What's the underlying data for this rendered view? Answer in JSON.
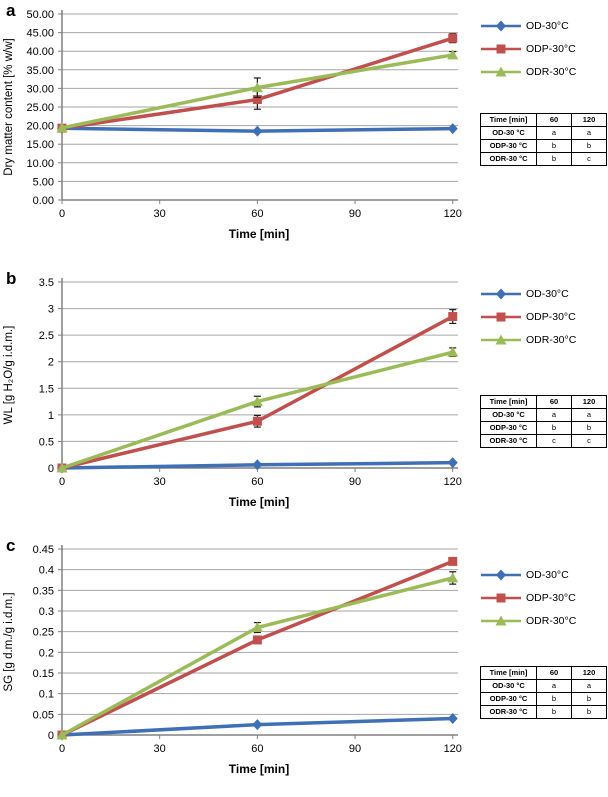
{
  "colors": {
    "blue": "#3f6fb5",
    "red": "#c0504d",
    "green": "#9bbb59",
    "grid": "#a6a6a6",
    "axis": "#808080",
    "error_bar": "#1a1a1a",
    "text": "#000000"
  },
  "panels": [
    {
      "letter": "a",
      "legend": {
        "entries": [
          "OD-30°C",
          "ODP-30°C",
          "ODR-30°C"
        ]
      },
      "table": {
        "headers": [
          "Time [min]",
          "60",
          "120"
        ],
        "rows": [
          {
            "label": "OD-30 °C",
            "values": [
              "a",
              "a"
            ]
          },
          {
            "label": "ODP-30 °C",
            "values": [
              "b",
              "b"
            ]
          },
          {
            "label": "ODR-30 °C",
            "values": [
              "b",
              "c"
            ]
          }
        ]
      }
    },
    {
      "letter": "b",
      "legend": {
        "entries": [
          "OD-30°C",
          "ODP-30°C",
          "ODR-30°C"
        ]
      },
      "table": {
        "headers": [
          "Time [min]",
          "60",
          "120"
        ],
        "rows": [
          {
            "label": "OD-30 °C",
            "values": [
              "a",
              "a"
            ]
          },
          {
            "label": "ODP-30 °C",
            "values": [
              "b",
              "b"
            ]
          },
          {
            "label": "ODR-30 °C",
            "values": [
              "c",
              "c"
            ]
          }
        ]
      }
    },
    {
      "letter": "c",
      "legend": {
        "entries": [
          "OD-30°C",
          "ODP-30°C",
          "ODR-30°C"
        ]
      },
      "table": {
        "headers": [
          "Time [min]",
          "60",
          "120"
        ],
        "rows": [
          {
            "label": "OD-30 °C",
            "values": [
              "a",
              "a"
            ]
          },
          {
            "label": "ODP-30 °C",
            "values": [
              "b",
              "b"
            ]
          },
          {
            "label": "ODR-30 °C",
            "values": [
              "b",
              "b"
            ]
          }
        ]
      }
    }
  ],
  "chart_data": [
    {
      "type": "line",
      "panel": "a",
      "title": "",
      "xlabel": "Time [min]",
      "ylabel": "Dry matter content [% w/w]",
      "x": [
        0,
        60,
        120
      ],
      "xticks": [
        0,
        30,
        60,
        90,
        120
      ],
      "xtick_labels": [
        "0",
        "30",
        "60",
        "90",
        "120"
      ],
      "xlim": [
        0,
        121
      ],
      "ylim": [
        0,
        50
      ],
      "yticks": [
        0,
        5,
        10,
        15,
        20,
        25,
        30,
        35,
        40,
        45,
        50
      ],
      "ytick_labels": [
        "0.00",
        "5.00",
        "10.00",
        "15.00",
        "20.00",
        "25.00",
        "30.00",
        "35.00",
        "40.00",
        "45.00",
        "50.00"
      ],
      "grid": true,
      "legend_position": "right",
      "series": [
        {
          "name": "OD-30°C",
          "marker": "diamond",
          "color_key": "blue",
          "values": [
            19.3,
            18.5,
            19.2
          ],
          "errors": [
            0,
            0,
            0
          ]
        },
        {
          "name": "ODP-30°C",
          "marker": "square",
          "color_key": "red",
          "values": [
            19.3,
            27.0,
            43.5
          ],
          "errors": [
            0,
            2.6,
            1.2
          ]
        },
        {
          "name": "ODR-30°C",
          "marker": "triangle",
          "color_key": "green",
          "values": [
            19.4,
            30.2,
            39.0
          ],
          "errors": [
            0,
            2.6,
            0.9
          ]
        }
      ]
    },
    {
      "type": "line",
      "panel": "b",
      "title": "",
      "xlabel": "Time [min]",
      "ylabel": "WL [g H₂O/g i.d.m.]",
      "x": [
        0,
        60,
        120
      ],
      "xticks": [
        0,
        30,
        60,
        90,
        120
      ],
      "xtick_labels": [
        "0",
        "30",
        "60",
        "90",
        "120"
      ],
      "xlim": [
        0,
        121
      ],
      "ylim": [
        0,
        3.5
      ],
      "yticks": [
        0,
        0.5,
        1,
        1.5,
        2,
        2.5,
        3,
        3.5
      ],
      "ytick_labels": [
        "0",
        "0.5",
        "1",
        "1.5",
        "2",
        "2.5",
        "3",
        "3.5"
      ],
      "grid": true,
      "legend_position": "right",
      "series": [
        {
          "name": "OD-30°C",
          "marker": "diamond",
          "color_key": "blue",
          "values": [
            0,
            0.06,
            0.1
          ],
          "errors": [
            0,
            0,
            0
          ]
        },
        {
          "name": "ODP-30°C",
          "marker": "square",
          "color_key": "red",
          "values": [
            0,
            0.88,
            2.85
          ],
          "errors": [
            0,
            0.11,
            0.13
          ]
        },
        {
          "name": "ODR-30°C",
          "marker": "triangle",
          "color_key": "green",
          "values": [
            0,
            1.25,
            2.18
          ],
          "errors": [
            0,
            0.1,
            0.08
          ]
        }
      ]
    },
    {
      "type": "line",
      "panel": "c",
      "title": "",
      "xlabel": "Time [min]",
      "ylabel": "SG [g d.m./g i.d.m.]",
      "x": [
        0,
        60,
        120
      ],
      "xticks": [
        0,
        30,
        60,
        90,
        120
      ],
      "xtick_labels": [
        "0",
        "30",
        "60",
        "90",
        "120"
      ],
      "xlim": [
        0,
        121
      ],
      "ylim": [
        0,
        0.45
      ],
      "yticks": [
        0,
        0.05,
        0.1,
        0.15,
        0.2,
        0.25,
        0.3,
        0.35,
        0.4,
        0.45
      ],
      "ytick_labels": [
        "0",
        "0.05",
        "0.1",
        "0.15",
        "0.2",
        "0.25",
        "0.3",
        "0.35",
        "0.4",
        "0.45"
      ],
      "grid": true,
      "legend_position": "right",
      "series": [
        {
          "name": "OD-30°C",
          "marker": "diamond",
          "color_key": "blue",
          "values": [
            0,
            0.025,
            0.04
          ],
          "errors": [
            0,
            0,
            0
          ]
        },
        {
          "name": "ODP-30°C",
          "marker": "square",
          "color_key": "red",
          "values": [
            0,
            0.23,
            0.42
          ],
          "errors": [
            0,
            0.008,
            0.006
          ]
        },
        {
          "name": "ODR-30°C",
          "marker": "triangle",
          "color_key": "green",
          "values": [
            0,
            0.26,
            0.38
          ],
          "errors": [
            0,
            0.012,
            0.015
          ]
        }
      ]
    }
  ]
}
